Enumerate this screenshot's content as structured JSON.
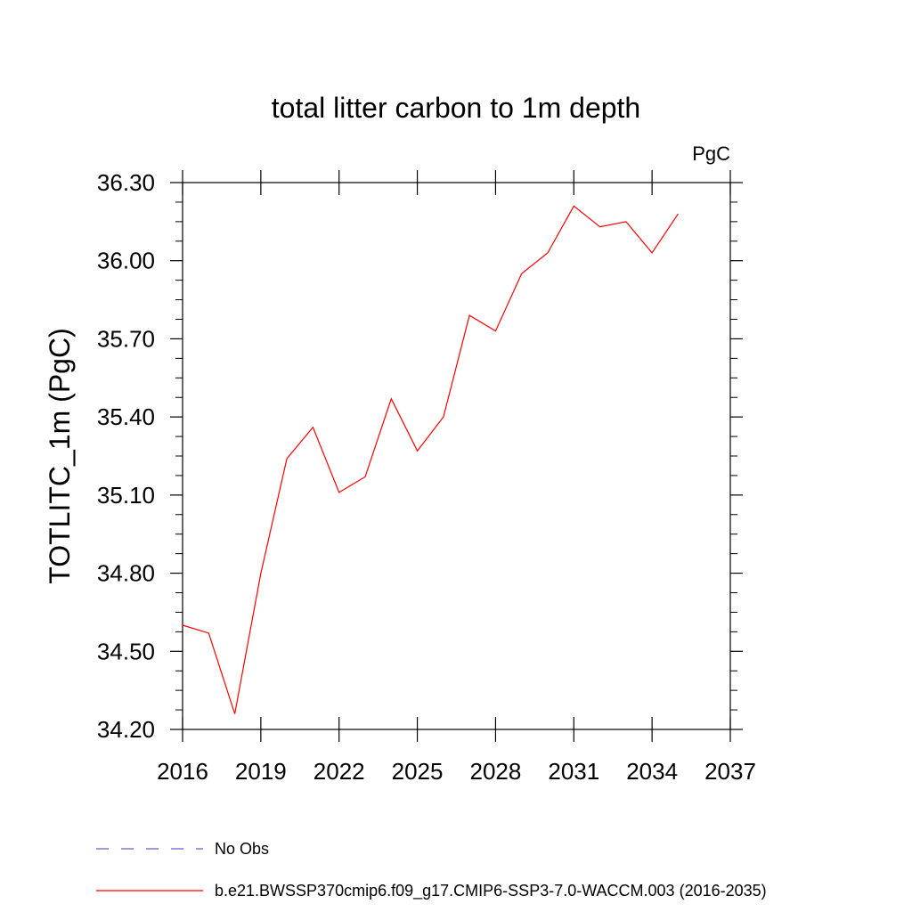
{
  "chart_data": {
    "type": "line",
    "title": "total litter carbon to 1m depth",
    "units_label": "PgC",
    "ylabel": "TOTLITC_1m  (PgC)",
    "xlabel": "",
    "xlim": [
      2016,
      2037
    ],
    "ylim": [
      34.2,
      36.3
    ],
    "x_ticks": [
      2016,
      2019,
      2022,
      2025,
      2028,
      2031,
      2034,
      2037
    ],
    "x_tick_labels": [
      "2016",
      "2019",
      "2022",
      "2025",
      "2028",
      "2031",
      "2034",
      "2037"
    ],
    "y_ticks": [
      34.2,
      34.5,
      34.8,
      35.1,
      35.4,
      35.7,
      36.0,
      36.3
    ],
    "y_tick_labels": [
      "34.20",
      "34.50",
      "34.80",
      "35.10",
      "35.40",
      "35.70",
      "36.00",
      "36.30"
    ],
    "grid": false,
    "legend_position": "bottom",
    "series": [
      {
        "name": "b.e21.BWSSP370cmip6.f09_g17.CMIP6-SSP3-7.0-WACCM.003 (2016-2035)",
        "color": "#ff0000",
        "style": "solid",
        "x": [
          2016,
          2017,
          2018,
          2019,
          2020,
          2021,
          2022,
          2023,
          2024,
          2025,
          2026,
          2027,
          2028,
          2029,
          2030,
          2031,
          2032,
          2033,
          2034,
          2035
        ],
        "values": [
          34.6,
          34.57,
          34.26,
          34.8,
          35.24,
          35.36,
          35.11,
          35.17,
          35.47,
          35.27,
          35.4,
          35.79,
          35.73,
          35.95,
          36.03,
          36.21,
          36.13,
          36.15,
          36.03,
          36.18
        ]
      }
    ],
    "legend": [
      {
        "label": "No Obs",
        "color": "#6a5acd",
        "style": "dashed"
      },
      {
        "label": "b.e21.BWSSP370cmip6.f09_g17.CMIP6-SSP3-7.0-WACCM.003 (2016-2035)",
        "color": "#ff0000",
        "style": "solid"
      }
    ]
  }
}
